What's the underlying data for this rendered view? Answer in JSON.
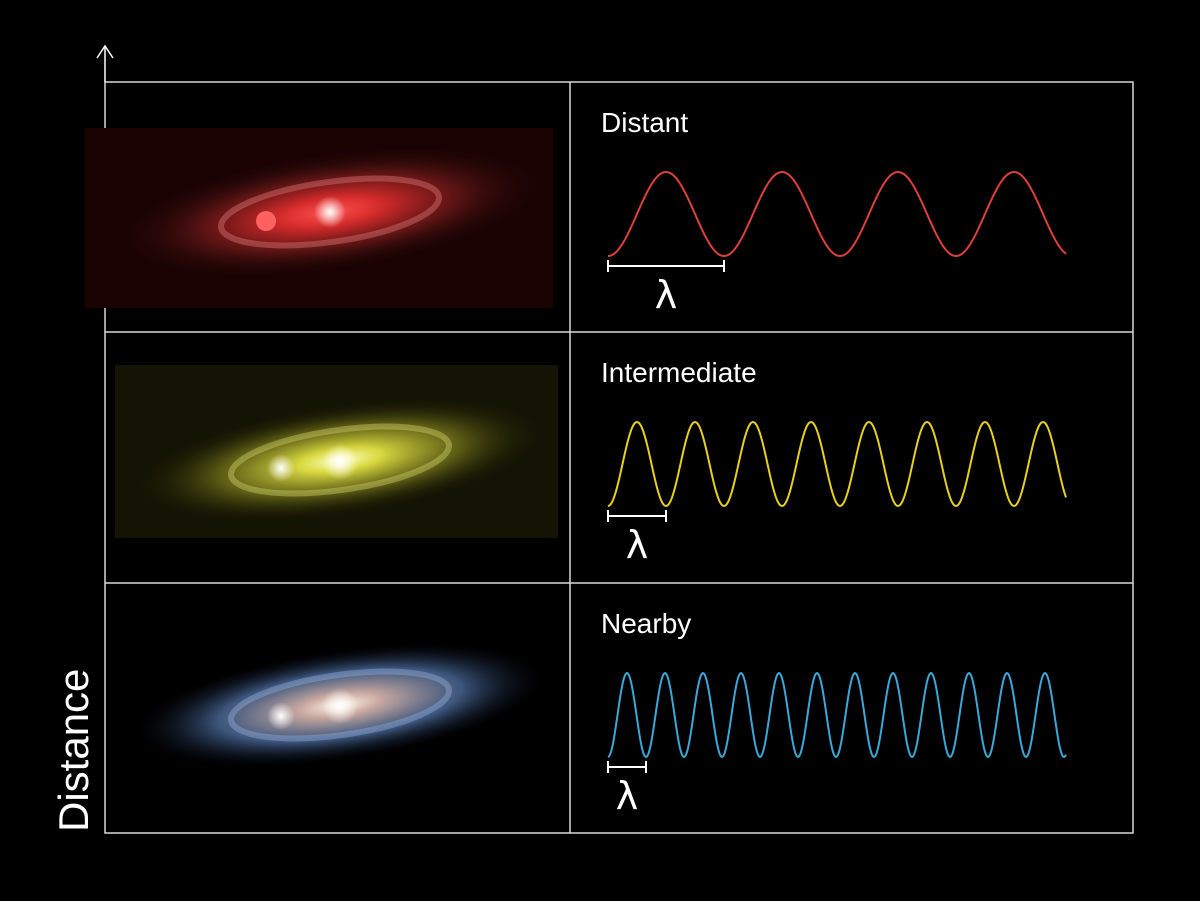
{
  "axis_label": "Distance",
  "rows": [
    {
      "label": "Distant",
      "symbol": "λ"
    },
    {
      "label": "Intermediate",
      "symbol": "λ"
    },
    {
      "label": "Nearby",
      "symbol": "λ"
    }
  ]
}
